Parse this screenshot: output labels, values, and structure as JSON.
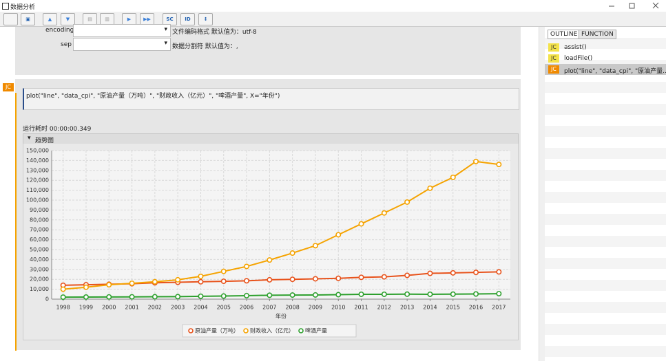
{
  "window": {
    "title": "数据分析"
  },
  "toolbar": {
    "buttons": [
      "SC",
      "ID",
      "↕"
    ]
  },
  "form": {
    "rows": [
      {
        "label": "encoding",
        "hint": "文件编码格式 默认值为：utf-8"
      },
      {
        "label": "sep",
        "hint": "数据分割符 默认值为：,"
      }
    ]
  },
  "cell": {
    "badge": "JC",
    "code": "plot(\"line\", \"data_cpi\", \"原油产量（万吨）\", \"财政收入（亿元）\", \"啤酒产量\", X=\"年份\")",
    "runtime": "运行耗时 00:00:00.349",
    "panel_title": "趋势图"
  },
  "chart_data": {
    "type": "line",
    "categories": [
      "1998",
      "1999",
      "2000",
      "2001",
      "2002",
      "2003",
      "2004",
      "2005",
      "2006",
      "2007",
      "2008",
      "2009",
      "2010",
      "2011",
      "2012",
      "2013",
      "2014",
      "2015",
      "2016",
      "2017"
    ],
    "series": [
      {
        "name": "原油产量（万吨）",
        "color": "#e8531c",
        "values": [
          14000,
          14500,
          15000,
          15500,
          16500,
          17000,
          17500,
          18000,
          18500,
          19500,
          20000,
          20500,
          21000,
          22000,
          22500,
          24000,
          26000,
          26500,
          27000,
          27500
        ]
      },
      {
        "name": "财政收入（亿元）",
        "color": "#f5a300",
        "values": [
          10000,
          12000,
          14500,
          16000,
          17500,
          19500,
          23000,
          28000,
          33000,
          39500,
          46500,
          54000,
          65000,
          76000,
          87000,
          98000,
          112000,
          123000,
          139000,
          136000
        ]
      },
      {
        "name": "啤酒产量",
        "color": "#2ea02e",
        "values": [
          2000,
          2100,
          2200,
          2300,
          2400,
          2500,
          2900,
          3100,
          3500,
          3900,
          4100,
          4200,
          4500,
          4900,
          4900,
          5000,
          4900,
          5000,
          5200,
          5500
        ]
      }
    ],
    "ylim": [
      0,
      150000
    ],
    "yticks": [
      0,
      {
        "value": 10000,
        "label": "10,000"
      },
      {
        "value": 20000,
        "label": "20,000"
      },
      {
        "value": 30000,
        "label": "30,000"
      },
      {
        "value": 40000,
        "label": "40,000"
      },
      {
        "value": 50000,
        "label": "50,000"
      },
      {
        "value": 60000,
        "label": "60,000"
      },
      {
        "value": 70000,
        "label": "70,000"
      },
      {
        "value": 80000,
        "label": "80,000"
      },
      {
        "value": 90000,
        "label": "90,000"
      },
      {
        "value": 100000,
        "label": "100,000"
      },
      {
        "value": 110000,
        "label": "110,000"
      },
      {
        "value": 120000,
        "label": "120,000"
      },
      {
        "value": 130000,
        "label": "130,000"
      },
      {
        "value": 140000,
        "label": "140,000"
      },
      {
        "value": 150000,
        "label": "150,000"
      }
    ],
    "x_label": "年份",
    "grid": true,
    "legend": "bottom"
  },
  "outline": {
    "tabs": [
      "OUTLINE",
      "FUNCTION"
    ],
    "items": [
      {
        "badge": "JC",
        "label": "assist()"
      },
      {
        "badge": "JC",
        "label": "loadFile()"
      },
      {
        "badge": "JC",
        "label": "plot(\"line\", \"data_cpi\", \"原油产量..."
      }
    ]
  }
}
